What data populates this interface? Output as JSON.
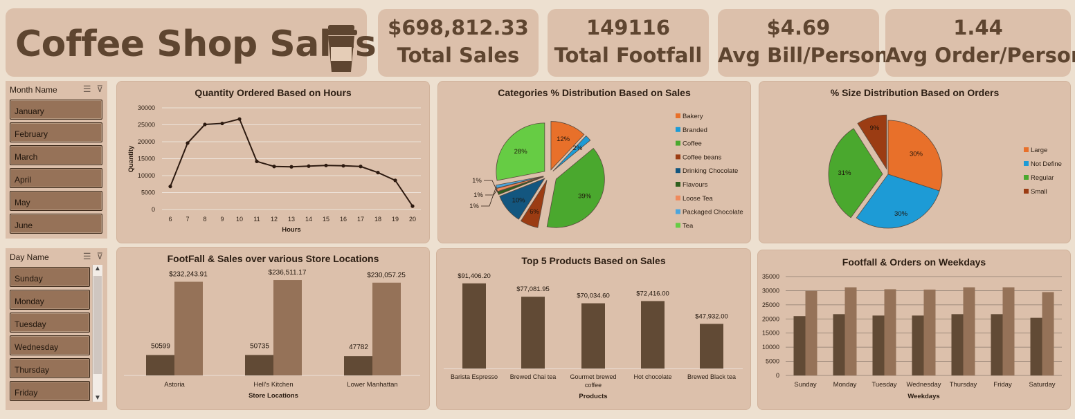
{
  "title": "Coffee Shop Sales",
  "kpis": [
    {
      "value": "$698,812.33",
      "label": "Total Sales"
    },
    {
      "value": "149116",
      "label": "Total Footfall"
    },
    {
      "value": "$4.69",
      "label": "Avg Bill/Person"
    },
    {
      "value": "1.44",
      "label": "Avg Order/Person"
    }
  ],
  "month_slicer": {
    "header": "Month Name",
    "items": [
      "January",
      "February",
      "March",
      "April",
      "May",
      "June"
    ]
  },
  "day_slicer": {
    "header": "Day Name",
    "items": [
      "Sunday",
      "Monday",
      "Tuesday",
      "Wednesday",
      "Thursday",
      "Friday"
    ]
  },
  "colors": {
    "dark": "#614a35",
    "light": "#957258",
    "line": "#2d1a10"
  },
  "chart_data": [
    {
      "id": "hours",
      "type": "line",
      "title": "Quantity Ordered Based on Hours",
      "xlabel": "Hours",
      "ylabel": "Quantity",
      "x": [
        6,
        7,
        8,
        9,
        10,
        11,
        12,
        13,
        14,
        15,
        16,
        17,
        18,
        19,
        20
      ],
      "values": [
        6800,
        19600,
        25100,
        25400,
        26700,
        14200,
        12700,
        12600,
        12800,
        13000,
        12900,
        12700,
        10900,
        8600,
        1000
      ],
      "yticks": [
        0,
        5000,
        10000,
        15000,
        20000,
        25000,
        30000
      ],
      "ylim": [
        0,
        30000
      ],
      "grid": true
    },
    {
      "id": "categories",
      "type": "pie",
      "title": "Categories % Distribution Based on Sales",
      "legend_position": "right",
      "slices": [
        {
          "name": "Bakery",
          "value": 12,
          "label": "12%",
          "color": "#e8702a"
        },
        {
          "name": "Branded",
          "value": 2,
          "label": "2%",
          "color": "#1d9bd6"
        },
        {
          "name": "Coffee",
          "value": 39,
          "label": "39%",
          "color": "#4aa82e"
        },
        {
          "name": "Coffee beans",
          "value": 6,
          "label": "6%",
          "color": "#9b3c13"
        },
        {
          "name": "Drinking Chocolate",
          "value": 10,
          "label": "10%",
          "color": "#13567f"
        },
        {
          "name": "Flavours",
          "value": 1,
          "label": "1%",
          "color": "#2e5f1e"
        },
        {
          "name": "Loose Tea",
          "value": 1,
          "label": "1%",
          "color": "#f08a5c"
        },
        {
          "name": "Packaged Chocolate",
          "value": 1,
          "label": "1%",
          "color": "#4ba5dc"
        },
        {
          "name": "Tea",
          "value": 28,
          "label": "28%",
          "color": "#66cc44"
        }
      ]
    },
    {
      "id": "sizes",
      "type": "pie",
      "title": "% Size Distribution Based on Orders",
      "legend_position": "right",
      "slices": [
        {
          "name": "Large",
          "value": 30,
          "label": "30%",
          "color": "#e8702a"
        },
        {
          "name": "Not Define",
          "value": 30,
          "label": "30%",
          "color": "#1d9bd6"
        },
        {
          "name": "Regular",
          "value": 31,
          "label": "31%",
          "color": "#4aa82e"
        },
        {
          "name": "Small",
          "value": 9,
          "label": "9%",
          "color": "#9b3c13"
        }
      ]
    },
    {
      "id": "stores",
      "type": "bar",
      "title": "FootFall  & Sales over various Store Locations",
      "xlabel": "Store Locations",
      "categories": [
        "Astoria",
        "Hell's Kitchen",
        "Lower Manhattan"
      ],
      "series": [
        {
          "values": [
            50599,
            50735,
            47782
          ],
          "labels": [
            "50599",
            "50735",
            "47782"
          ]
        },
        {
          "values": [
            232243.91,
            236511.17,
            230057.25
          ],
          "labels": [
            "$232,243.91",
            "$236,511.17",
            "$230,057.25"
          ]
        }
      ],
      "ylim": [
        0,
        240000
      ]
    },
    {
      "id": "products",
      "type": "bar",
      "title": "Top 5 Products Based on Sales",
      "xlabel": "Products",
      "categories": [
        "Barista Espresso",
        "Brewed Chai tea",
        "Gourmet brewed coffee",
        "Hot chocolate",
        "Brewed Black tea"
      ],
      "values": [
        91406.2,
        77081.95,
        70034.6,
        72416.0,
        47932.0
      ],
      "labels": [
        "$91,406.20",
        "$77,081.95",
        "$70,034.60",
        "$72,416.00",
        "$47,932.00"
      ],
      "ylim": [
        0,
        95000
      ]
    },
    {
      "id": "weekdays",
      "type": "bar",
      "title": "Footfall & Orders on Weekdays",
      "xlabel": "Weekdays",
      "categories": [
        "Sunday",
        "Monday",
        "Tuesday",
        "Wednesday",
        "Thursday",
        "Friday",
        "Saturday"
      ],
      "series": [
        {
          "values": [
            21000,
            21700,
            21200,
            21200,
            21700,
            21700,
            20400
          ]
        },
        {
          "values": [
            29900,
            31200,
            30500,
            30400,
            31200,
            31200,
            29500
          ]
        }
      ],
      "yticks": [
        0,
        5000,
        10000,
        15000,
        20000,
        25000,
        30000,
        35000
      ],
      "ylim": [
        0,
        35000
      ],
      "grid": true
    }
  ]
}
